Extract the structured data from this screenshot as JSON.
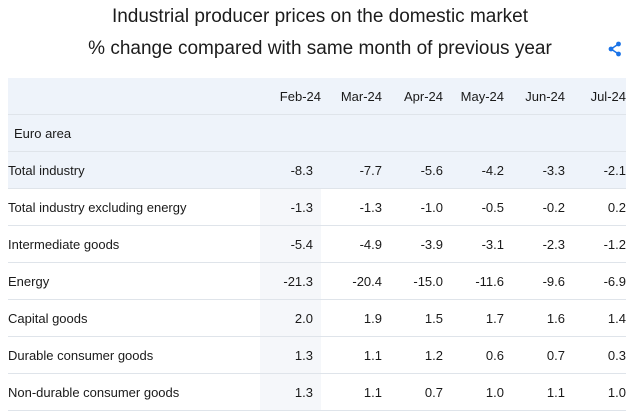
{
  "header": {
    "title": "Industrial producer prices on the domestic market",
    "subtitle": "% change compared with same month of previous year",
    "share_icon": "share-icon"
  },
  "table": {
    "columns": [
      "Feb-24",
      "Mar-24",
      "Apr-24",
      "May-24",
      "Jun-24",
      "Jul-24"
    ],
    "section": "Euro area",
    "rows": [
      {
        "label": "Total industry",
        "values": [
          "-8.3",
          "-7.7",
          "-5.6",
          "-4.2",
          "-3.3",
          "-2.1"
        ]
      },
      {
        "label": "Total industry excluding energy",
        "values": [
          "-1.3",
          "-1.3",
          "-1.0",
          "-0.5",
          "-0.2",
          "0.2"
        ]
      },
      {
        "label": "Intermediate goods",
        "values": [
          "-5.4",
          "-4.9",
          "-3.9",
          "-3.1",
          "-2.3",
          "-1.2"
        ]
      },
      {
        "label": "Energy",
        "values": [
          "-21.3",
          "-20.4",
          "-15.0",
          "-11.6",
          "-9.6",
          "-6.9"
        ]
      },
      {
        "label": "Capital goods",
        "values": [
          "2.0",
          "1.9",
          "1.5",
          "1.7",
          "1.6",
          "1.4"
        ]
      },
      {
        "label": "Durable consumer goods",
        "values": [
          "1.3",
          "1.1",
          "1.2",
          "0.6",
          "0.7",
          "0.3"
        ]
      },
      {
        "label": "Non-durable consumer goods",
        "values": [
          "1.3",
          "1.1",
          "0.7",
          "1.0",
          "1.1",
          "1.0"
        ]
      }
    ]
  },
  "colors": {
    "accent": "#1a73e8",
    "header_bg": "#eef3fa"
  }
}
